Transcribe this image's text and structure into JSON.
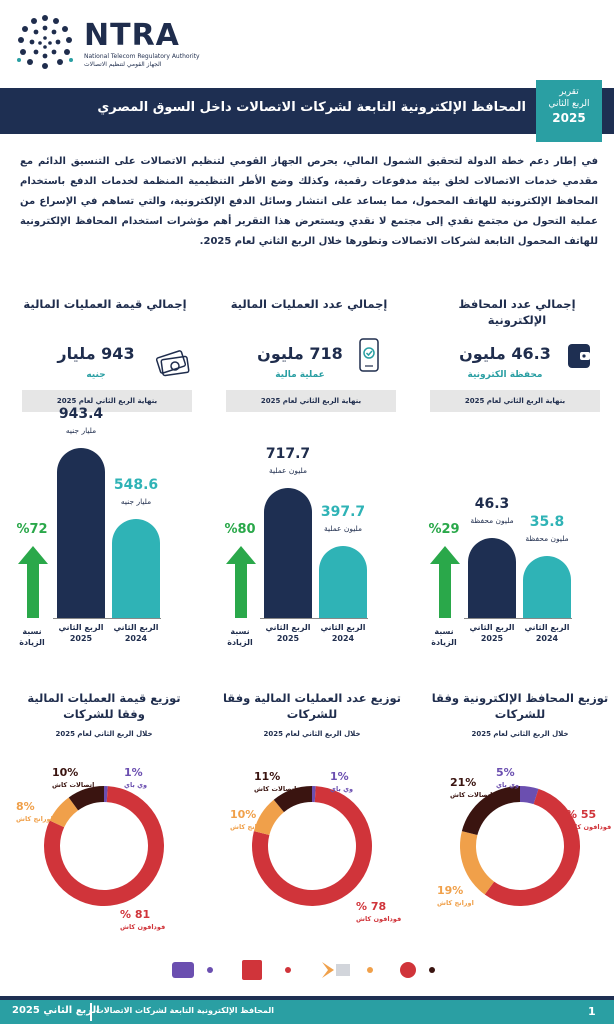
{
  "header": {
    "logo_name": "NTRA",
    "logo_sub_en": "National Telecom Regulatory Authority",
    "logo_sub_ar": "الجهاز القومي لتنظيم الاتصالات",
    "title": "المحافظ الإلكترونية التابعة لشركات الاتصالات داخل السوق المصري",
    "quarter_label_1": "تقرير",
    "quarter_label_2": "الربع الثاني",
    "quarter_year": "2025"
  },
  "intro": "في إطار دعم خطة الدولة لتحقيق الشمول المالي، يحرص الجهاز القومي لتنظيم الاتصالات على التنسيق الدائم مع مقدمي خدمات الاتصالات لخلق بيئة مدفوعات رقمية، وكذلك وضع الأطر التنظيمية المنظمة لخدمات الدفع باستخدام المحافظ الإلكترونية للهاتف المحمول، مما يساعد على انتشار وسائل الدفع الإلكترونية، والتي تساهم في الإسراع من عملية التحول من مجتمع نقدي إلى مجتمع لا نقدي ويستعرض هذا التقرير أهم مؤشرات استخدام المحافظ الإلكترونية للهاتف المحمول التابعة لشركات الاتصالات وتطورها خلال الربع الثاني لعام 2025.",
  "kpis": [
    {
      "title": "إجمالي عدد المحافظ الإلكترونية",
      "value": "46.3 مليون",
      "unit": "محفظة الكترونية",
      "foot": "بنهاية الربع الثاني لعام 2025",
      "icon": "wallet-icon"
    },
    {
      "title": "إجمالي عدد العمليات المالية",
      "value": "718 مليون",
      "unit": "عملية مالية",
      "foot": "بنهاية الربع الثاني لعام 2025",
      "icon": "phone-check-icon"
    },
    {
      "title": "إجمالي قيمة العمليات المالية",
      "value": "943 مليار",
      "unit": "جنيه",
      "foot": "بنهاية الربع الثاني لعام 2025",
      "icon": "money-icon"
    }
  ],
  "bars": [
    {
      "pct": "%29",
      "pct_label": "نسبة الزيادة",
      "q2_2025": 46.3,
      "q2_2024": 35.8,
      "q2_2025_text": "46.3",
      "q2_2024_text": "35.8",
      "unit_2025": "مليون محفظة",
      "unit_2024": "مليون محفظة",
      "label_2025": "الربع الثاني 2025",
      "label_2024": "الربع الثاني 2024"
    },
    {
      "pct": "%80",
      "pct_label": "نسبة الزيادة",
      "q2_2025": 717.7,
      "q2_2024": 397.7,
      "q2_2025_text": "717.7",
      "q2_2024_text": "397.7",
      "unit_2025": "مليون عملية",
      "unit_2024": "مليون عملية",
      "label_2025": "الربع الثاني 2025",
      "label_2024": "الربع الثاني 2024"
    },
    {
      "pct": "%72",
      "pct_label": "نسبة الزيادة",
      "q2_2025": 943.4,
      "q2_2024": 548.6,
      "q2_2025_text": "943.4",
      "q2_2024_text": "548.6",
      "unit_2025": "مليار جنيه",
      "unit_2024": "مليار جنيه",
      "label_2025": "الربع الثاني 2025",
      "label_2024": "الربع الثاني 2024"
    }
  ],
  "pies": [
    {
      "title": "توزيع المحافظ الإلكترونية وفقا للشركات",
      "sub": "خلال الربع الثاني لعام 2025",
      "slices": [
        {
          "name": "فودافون كاش",
          "value": 55,
          "label": "55 %",
          "color": "#d0343a"
        },
        {
          "name": "اورانج كاش",
          "value": 19,
          "label": "19%",
          "color": "#f0a04a"
        },
        {
          "name": "اتصالات كاش",
          "value": 21,
          "label": "21%",
          "color": "#3a1410"
        },
        {
          "name": "وي باي",
          "value": 5,
          "label": "5%",
          "color": "#6b4fb0"
        }
      ]
    },
    {
      "title": "توزيع عدد العمليات المالية وفقا للشركات",
      "sub": "خلال الربع الثاني لعام 2025",
      "slices": [
        {
          "name": "فودافون كاش",
          "value": 78,
          "label": "78 %",
          "color": "#d0343a"
        },
        {
          "name": "اورانج كاش",
          "value": 10,
          "label": "10%",
          "color": "#f0a04a"
        },
        {
          "name": "اتصالات كاش",
          "value": 11,
          "label": "11%",
          "color": "#3a1410"
        },
        {
          "name": "وي باي",
          "value": 1,
          "label": "1%",
          "color": "#6b4fb0"
        }
      ]
    },
    {
      "title": "توزيع قيمة العمليات المالية وفقا للشركات",
      "sub": "خلال الربع الثاني لعام 2025",
      "slices": [
        {
          "name": "فودافون كاش",
          "value": 81,
          "label": "81 %",
          "color": "#d0343a"
        },
        {
          "name": "اورانج كاش",
          "value": 8,
          "label": "8%",
          "color": "#f0a04a"
        },
        {
          "name": "اتصالات كاش",
          "value": 10,
          "label": "10%",
          "color": "#3a1410"
        },
        {
          "name": "وي باي",
          "value": 1,
          "label": "1%",
          "color": "#6b4fb0"
        }
      ]
    }
  ],
  "legend_icons": [
    "vodafone-cash-logo-icon",
    "orange-cash-logo-icon",
    "etisalat-cash-logo-icon",
    "we-pay-logo-icon"
  ],
  "footer": {
    "title": "المحافظ الإلكترونية التابعة لشركات الاتصالات",
    "quarter": "الربع الثاني 2025",
    "page": "1"
  }
}
